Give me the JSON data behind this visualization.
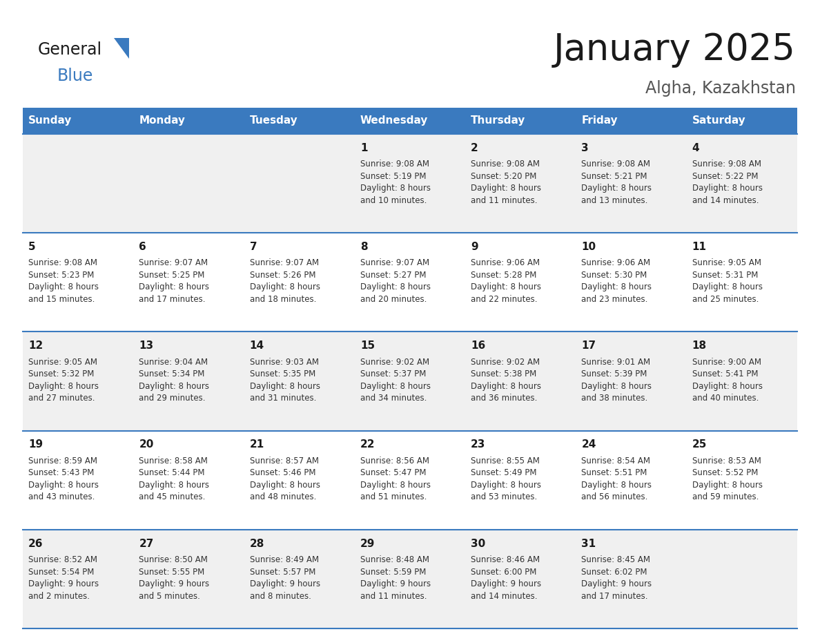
{
  "title": "January 2025",
  "subtitle": "Algha, Kazakhstan",
  "header_bg": "#3a7abf",
  "header_text_color": "#ffffff",
  "cell_bg_odd": "#f0f0f0",
  "cell_bg_even": "#ffffff",
  "day_headers": [
    "Sunday",
    "Monday",
    "Tuesday",
    "Wednesday",
    "Thursday",
    "Friday",
    "Saturday"
  ],
  "grid_line_color": "#3a7abf",
  "day_number_color": "#1a1a1a",
  "info_text_color": "#333333",
  "calendar": [
    [
      {
        "day": "",
        "info": ""
      },
      {
        "day": "",
        "info": ""
      },
      {
        "day": "",
        "info": ""
      },
      {
        "day": "1",
        "info": "Sunrise: 9:08 AM\nSunset: 5:19 PM\nDaylight: 8 hours\nand 10 minutes."
      },
      {
        "day": "2",
        "info": "Sunrise: 9:08 AM\nSunset: 5:20 PM\nDaylight: 8 hours\nand 11 minutes."
      },
      {
        "day": "3",
        "info": "Sunrise: 9:08 AM\nSunset: 5:21 PM\nDaylight: 8 hours\nand 13 minutes."
      },
      {
        "day": "4",
        "info": "Sunrise: 9:08 AM\nSunset: 5:22 PM\nDaylight: 8 hours\nand 14 minutes."
      }
    ],
    [
      {
        "day": "5",
        "info": "Sunrise: 9:08 AM\nSunset: 5:23 PM\nDaylight: 8 hours\nand 15 minutes."
      },
      {
        "day": "6",
        "info": "Sunrise: 9:07 AM\nSunset: 5:25 PM\nDaylight: 8 hours\nand 17 minutes."
      },
      {
        "day": "7",
        "info": "Sunrise: 9:07 AM\nSunset: 5:26 PM\nDaylight: 8 hours\nand 18 minutes."
      },
      {
        "day": "8",
        "info": "Sunrise: 9:07 AM\nSunset: 5:27 PM\nDaylight: 8 hours\nand 20 minutes."
      },
      {
        "day": "9",
        "info": "Sunrise: 9:06 AM\nSunset: 5:28 PM\nDaylight: 8 hours\nand 22 minutes."
      },
      {
        "day": "10",
        "info": "Sunrise: 9:06 AM\nSunset: 5:30 PM\nDaylight: 8 hours\nand 23 minutes."
      },
      {
        "day": "11",
        "info": "Sunrise: 9:05 AM\nSunset: 5:31 PM\nDaylight: 8 hours\nand 25 minutes."
      }
    ],
    [
      {
        "day": "12",
        "info": "Sunrise: 9:05 AM\nSunset: 5:32 PM\nDaylight: 8 hours\nand 27 minutes."
      },
      {
        "day": "13",
        "info": "Sunrise: 9:04 AM\nSunset: 5:34 PM\nDaylight: 8 hours\nand 29 minutes."
      },
      {
        "day": "14",
        "info": "Sunrise: 9:03 AM\nSunset: 5:35 PM\nDaylight: 8 hours\nand 31 minutes."
      },
      {
        "day": "15",
        "info": "Sunrise: 9:02 AM\nSunset: 5:37 PM\nDaylight: 8 hours\nand 34 minutes."
      },
      {
        "day": "16",
        "info": "Sunrise: 9:02 AM\nSunset: 5:38 PM\nDaylight: 8 hours\nand 36 minutes."
      },
      {
        "day": "17",
        "info": "Sunrise: 9:01 AM\nSunset: 5:39 PM\nDaylight: 8 hours\nand 38 minutes."
      },
      {
        "day": "18",
        "info": "Sunrise: 9:00 AM\nSunset: 5:41 PM\nDaylight: 8 hours\nand 40 minutes."
      }
    ],
    [
      {
        "day": "19",
        "info": "Sunrise: 8:59 AM\nSunset: 5:43 PM\nDaylight: 8 hours\nand 43 minutes."
      },
      {
        "day": "20",
        "info": "Sunrise: 8:58 AM\nSunset: 5:44 PM\nDaylight: 8 hours\nand 45 minutes."
      },
      {
        "day": "21",
        "info": "Sunrise: 8:57 AM\nSunset: 5:46 PM\nDaylight: 8 hours\nand 48 minutes."
      },
      {
        "day": "22",
        "info": "Sunrise: 8:56 AM\nSunset: 5:47 PM\nDaylight: 8 hours\nand 51 minutes."
      },
      {
        "day": "23",
        "info": "Sunrise: 8:55 AM\nSunset: 5:49 PM\nDaylight: 8 hours\nand 53 minutes."
      },
      {
        "day": "24",
        "info": "Sunrise: 8:54 AM\nSunset: 5:51 PM\nDaylight: 8 hours\nand 56 minutes."
      },
      {
        "day": "25",
        "info": "Sunrise: 8:53 AM\nSunset: 5:52 PM\nDaylight: 8 hours\nand 59 minutes."
      }
    ],
    [
      {
        "day": "26",
        "info": "Sunrise: 8:52 AM\nSunset: 5:54 PM\nDaylight: 9 hours\nand 2 minutes."
      },
      {
        "day": "27",
        "info": "Sunrise: 8:50 AM\nSunset: 5:55 PM\nDaylight: 9 hours\nand 5 minutes."
      },
      {
        "day": "28",
        "info": "Sunrise: 8:49 AM\nSunset: 5:57 PM\nDaylight: 9 hours\nand 8 minutes."
      },
      {
        "day": "29",
        "info": "Sunrise: 8:48 AM\nSunset: 5:59 PM\nDaylight: 9 hours\nand 11 minutes."
      },
      {
        "day": "30",
        "info": "Sunrise: 8:46 AM\nSunset: 6:00 PM\nDaylight: 9 hours\nand 14 minutes."
      },
      {
        "day": "31",
        "info": "Sunrise: 8:45 AM\nSunset: 6:02 PM\nDaylight: 9 hours\nand 17 minutes."
      },
      {
        "day": "",
        "info": ""
      }
    ]
  ],
  "logo_general_color": "#1a1a1a",
  "logo_blue_color": "#3a7abf",
  "title_fontsize": 38,
  "subtitle_fontsize": 17,
  "header_fontsize": 11,
  "day_num_fontsize": 11,
  "info_fontsize": 8.5,
  "logo_fontsize_general": 17,
  "logo_fontsize_blue": 17
}
